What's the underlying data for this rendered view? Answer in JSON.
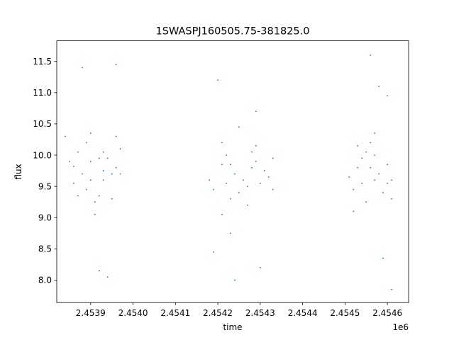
{
  "chart_data": {
    "type": "scatter",
    "title": "1SWASPJ160505.75-381825.0",
    "xlabel": "time",
    "ylabel": "flux",
    "x_offset_label": "1e6",
    "x_tick_values": [
      2.4539,
      2.454,
      2.4541,
      2.4542,
      2.4543,
      2.4544,
      2.4545,
      2.4546
    ],
    "x_tick_labels": [
      "2.4539",
      "2.4540",
      "2.4541",
      "2.4542",
      "2.4543",
      "2.4544",
      "2.4545",
      "2.4546"
    ],
    "y_tick_values": [
      8.0,
      8.5,
      9.0,
      9.5,
      10.0,
      10.5,
      11.0,
      11.5
    ],
    "y_tick_labels": [
      "8.0",
      "8.5",
      "9.0",
      "9.5",
      "10.0",
      "10.5",
      "11.0",
      "11.5"
    ],
    "xlim": [
      2.45382,
      2.45465
    ],
    "ylim": [
      7.64,
      11.83
    ],
    "grid": false,
    "color": "#1f77b4",
    "series": [
      {
        "points": [
          [
            2.45386,
            9.82
          ],
          [
            2.45386,
            9.55
          ],
          [
            2.45387,
            10.05
          ],
          [
            2.45387,
            9.35
          ],
          [
            2.45388,
            9.7
          ],
          [
            2.45389,
            10.2
          ],
          [
            2.4539,
            10.35
          ],
          [
            2.4539,
            9.9
          ],
          [
            2.4539,
            9.6
          ],
          [
            2.45391,
            9.25
          ],
          [
            2.45391,
            9.05
          ],
          [
            2.45392,
            9.35
          ],
          [
            2.45393,
            9.75
          ],
          [
            2.45393,
            10.05
          ],
          [
            2.45393,
            9.6
          ],
          [
            2.45394,
            9.95
          ],
          [
            2.45395,
            9.7
          ],
          [
            2.45395,
            9.3
          ],
          [
            2.45396,
            9.8
          ],
          [
            2.45396,
            10.3
          ],
          [
            2.45397,
            10.1
          ],
          [
            2.45397,
            9.7
          ],
          [
            2.45384,
            10.3
          ],
          [
            2.45388,
            11.4
          ],
          [
            2.45394,
            8.05
          ],
          [
            2.45396,
            11.45
          ],
          [
            2.45392,
            8.15
          ],
          [
            2.45389,
            9.45
          ],
          [
            2.45385,
            9.9
          ],
          [
            2.45392,
            9.95
          ],
          [
            2.45418,
            9.6
          ],
          [
            2.45419,
            9.45
          ],
          [
            2.45421,
            10.2
          ],
          [
            2.45421,
            9.85
          ],
          [
            2.45422,
            10.0
          ],
          [
            2.45422,
            9.55
          ],
          [
            2.45423,
            9.3
          ],
          [
            2.45423,
            9.85
          ],
          [
            2.45424,
            9.7
          ],
          [
            2.45425,
            9.4
          ],
          [
            2.45426,
            9.6
          ],
          [
            2.45427,
            9.5
          ],
          [
            2.45428,
            10.05
          ],
          [
            2.45428,
            9.8
          ],
          [
            2.45429,
            10.15
          ],
          [
            2.45429,
            9.9
          ],
          [
            2.4543,
            9.55
          ],
          [
            2.45431,
            9.75
          ],
          [
            2.45432,
            9.65
          ],
          [
            2.45433,
            9.95
          ],
          [
            2.45433,
            9.45
          ],
          [
            2.4542,
            11.2
          ],
          [
            2.45424,
            8.0
          ],
          [
            2.45429,
            10.7
          ],
          [
            2.45419,
            8.45
          ],
          [
            2.45425,
            10.45
          ],
          [
            2.45423,
            8.75
          ],
          [
            2.45427,
            9.2
          ],
          [
            2.45421,
            9.05
          ],
          [
            2.4543,
            8.2
          ],
          [
            2.45451,
            9.65
          ],
          [
            2.45452,
            9.45
          ],
          [
            2.45453,
            9.8
          ],
          [
            2.45454,
            9.55
          ],
          [
            2.45454,
            9.95
          ],
          [
            2.45455,
            10.05
          ],
          [
            2.45456,
            10.2
          ],
          [
            2.45456,
            9.8
          ],
          [
            2.45457,
            9.6
          ],
          [
            2.45457,
            10.0
          ],
          [
            2.45458,
            9.7
          ],
          [
            2.45459,
            9.4
          ],
          [
            2.4546,
            9.55
          ],
          [
            2.4546,
            9.85
          ],
          [
            2.45461,
            9.3
          ],
          [
            2.45461,
            9.6
          ],
          [
            2.45456,
            11.6
          ],
          [
            2.45459,
            8.35
          ],
          [
            2.45458,
            11.1
          ],
          [
            2.45461,
            7.85
          ],
          [
            2.45455,
            9.25
          ],
          [
            2.45457,
            10.35
          ],
          [
            2.45452,
            9.1
          ],
          [
            2.4546,
            10.95
          ],
          [
            2.45453,
            10.15
          ]
        ]
      }
    ]
  }
}
